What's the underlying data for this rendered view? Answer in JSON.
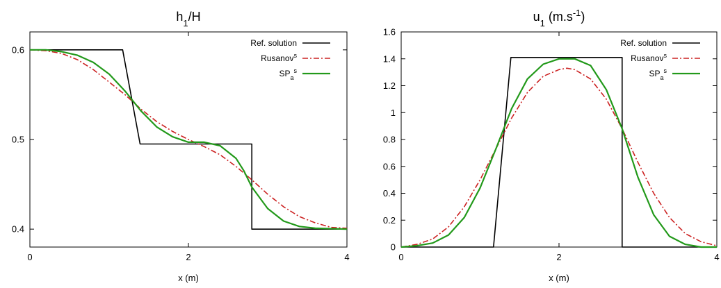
{
  "chart_data": [
    {
      "type": "line",
      "title": "h",
      "title_sub": "1",
      "title_rest": "/H",
      "xlabel": "x (m)",
      "ylabel": "",
      "xlim": [
        0,
        4
      ],
      "ylim": [
        0.38,
        0.62
      ],
      "xticks": [
        0,
        2,
        4
      ],
      "xtick_labels": [
        "0",
        "2",
        "4"
      ],
      "yticks": [
        0.4,
        0.5,
        0.6
      ],
      "ytick_labels": [
        "0.4",
        "0.5",
        "0.6"
      ],
      "grid": false,
      "legend_position": "top-right",
      "series": [
        {
          "name": "Ref. solution",
          "name_sup": "",
          "name_sub": "",
          "color": "#000000",
          "dash": "solid",
          "points": [
            [
              0,
              0.6
            ],
            [
              1.17,
              0.6
            ],
            [
              1.39,
              0.495
            ],
            [
              2.8,
              0.495
            ],
            [
              2.8,
              0.4
            ],
            [
              4,
              0.4
            ]
          ]
        },
        {
          "name": "Rusanov",
          "name_sup": "s",
          "name_sub": "",
          "color": "#cc2222",
          "dash": "dashdot",
          "points": [
            [
              0,
              0.6
            ],
            [
              0.2,
              0.599
            ],
            [
              0.4,
              0.596
            ],
            [
              0.6,
              0.589
            ],
            [
              0.8,
              0.578
            ],
            [
              1.0,
              0.564
            ],
            [
              1.2,
              0.55
            ],
            [
              1.4,
              0.534
            ],
            [
              1.6,
              0.52
            ],
            [
              1.8,
              0.509
            ],
            [
              2.0,
              0.5
            ],
            [
              2.2,
              0.492
            ],
            [
              2.4,
              0.483
            ],
            [
              2.6,
              0.47
            ],
            [
              2.8,
              0.455
            ],
            [
              3.0,
              0.439
            ],
            [
              3.2,
              0.425
            ],
            [
              3.4,
              0.414
            ],
            [
              3.6,
              0.407
            ],
            [
              3.8,
              0.402
            ],
            [
              4.0,
              0.401
            ]
          ]
        },
        {
          "name": "SP",
          "name_sup": "s",
          "name_sub": "a",
          "color": "#22991a",
          "dash": "solid",
          "points": [
            [
              0,
              0.6
            ],
            [
              0.2,
              0.6
            ],
            [
              0.4,
              0.598
            ],
            [
              0.6,
              0.594
            ],
            [
              0.8,
              0.586
            ],
            [
              1.0,
              0.573
            ],
            [
              1.2,
              0.554
            ],
            [
              1.4,
              0.532
            ],
            [
              1.6,
              0.514
            ],
            [
              1.8,
              0.503
            ],
            [
              2.0,
              0.497
            ],
            [
              2.2,
              0.497
            ],
            [
              2.4,
              0.493
            ],
            [
              2.6,
              0.479
            ],
            [
              2.7,
              0.465
            ],
            [
              2.8,
              0.447
            ],
            [
              3.0,
              0.423
            ],
            [
              3.2,
              0.409
            ],
            [
              3.4,
              0.403
            ],
            [
              3.6,
              0.401
            ],
            [
              4.0,
              0.4
            ]
          ]
        }
      ]
    },
    {
      "type": "line",
      "title": "u",
      "title_sub": "1",
      "title_rest": " (m.s",
      "title_sup": "-1",
      "title_end": ")",
      "xlabel": "x (m)",
      "ylabel": "",
      "xlim": [
        0,
        4
      ],
      "ylim": [
        0,
        1.6
      ],
      "xticks": [
        0,
        2,
        4
      ],
      "xtick_labels": [
        "0",
        "2",
        "4"
      ],
      "yticks": [
        0,
        0.2,
        0.4,
        0.6,
        0.8,
        1.0,
        1.2,
        1.4,
        1.6
      ],
      "ytick_labels": [
        "0",
        "0.2",
        "0.4",
        "0.6",
        "0.8",
        "1",
        "1.2",
        "1.4",
        "1.6"
      ],
      "grid": false,
      "legend_position": "top-right",
      "series": [
        {
          "name": "Ref. solution",
          "name_sup": "",
          "name_sub": "",
          "color": "#000000",
          "dash": "solid",
          "points": [
            [
              0,
              0
            ],
            [
              1.17,
              0
            ],
            [
              1.39,
              1.41
            ],
            [
              2.8,
              1.41
            ],
            [
              2.8,
              0
            ],
            [
              4,
              0
            ]
          ]
        },
        {
          "name": "Rusanov",
          "name_sup": "s",
          "name_sub": "",
          "color": "#cc2222",
          "dash": "dashdot",
          "points": [
            [
              0,
              0.0
            ],
            [
              0.2,
              0.02
            ],
            [
              0.4,
              0.06
            ],
            [
              0.6,
              0.15
            ],
            [
              0.8,
              0.3
            ],
            [
              1.0,
              0.5
            ],
            [
              1.2,
              0.73
            ],
            [
              1.4,
              0.96
            ],
            [
              1.6,
              1.15
            ],
            [
              1.8,
              1.27
            ],
            [
              2.0,
              1.32
            ],
            [
              2.1,
              1.33
            ],
            [
              2.2,
              1.32
            ],
            [
              2.4,
              1.25
            ],
            [
              2.6,
              1.1
            ],
            [
              2.8,
              0.88
            ],
            [
              3.0,
              0.63
            ],
            [
              3.2,
              0.4
            ],
            [
              3.4,
              0.22
            ],
            [
              3.6,
              0.1
            ],
            [
              3.8,
              0.04
            ],
            [
              4.0,
              0.01
            ]
          ]
        },
        {
          "name": "SP",
          "name_sup": "s",
          "name_sub": "a",
          "color": "#22991a",
          "dash": "solid",
          "points": [
            [
              0,
              0.0
            ],
            [
              0.2,
              0.01
            ],
            [
              0.4,
              0.03
            ],
            [
              0.6,
              0.09
            ],
            [
              0.8,
              0.22
            ],
            [
              1.0,
              0.44
            ],
            [
              1.2,
              0.73
            ],
            [
              1.4,
              1.03
            ],
            [
              1.6,
              1.25
            ],
            [
              1.8,
              1.36
            ],
            [
              2.0,
              1.4
            ],
            [
              2.2,
              1.4
            ],
            [
              2.4,
              1.35
            ],
            [
              2.6,
              1.17
            ],
            [
              2.8,
              0.88
            ],
            [
              3.0,
              0.52
            ],
            [
              3.2,
              0.24
            ],
            [
              3.4,
              0.08
            ],
            [
              3.6,
              0.02
            ],
            [
              3.8,
              0.0
            ],
            [
              4.0,
              0.0
            ]
          ]
        }
      ]
    }
  ]
}
